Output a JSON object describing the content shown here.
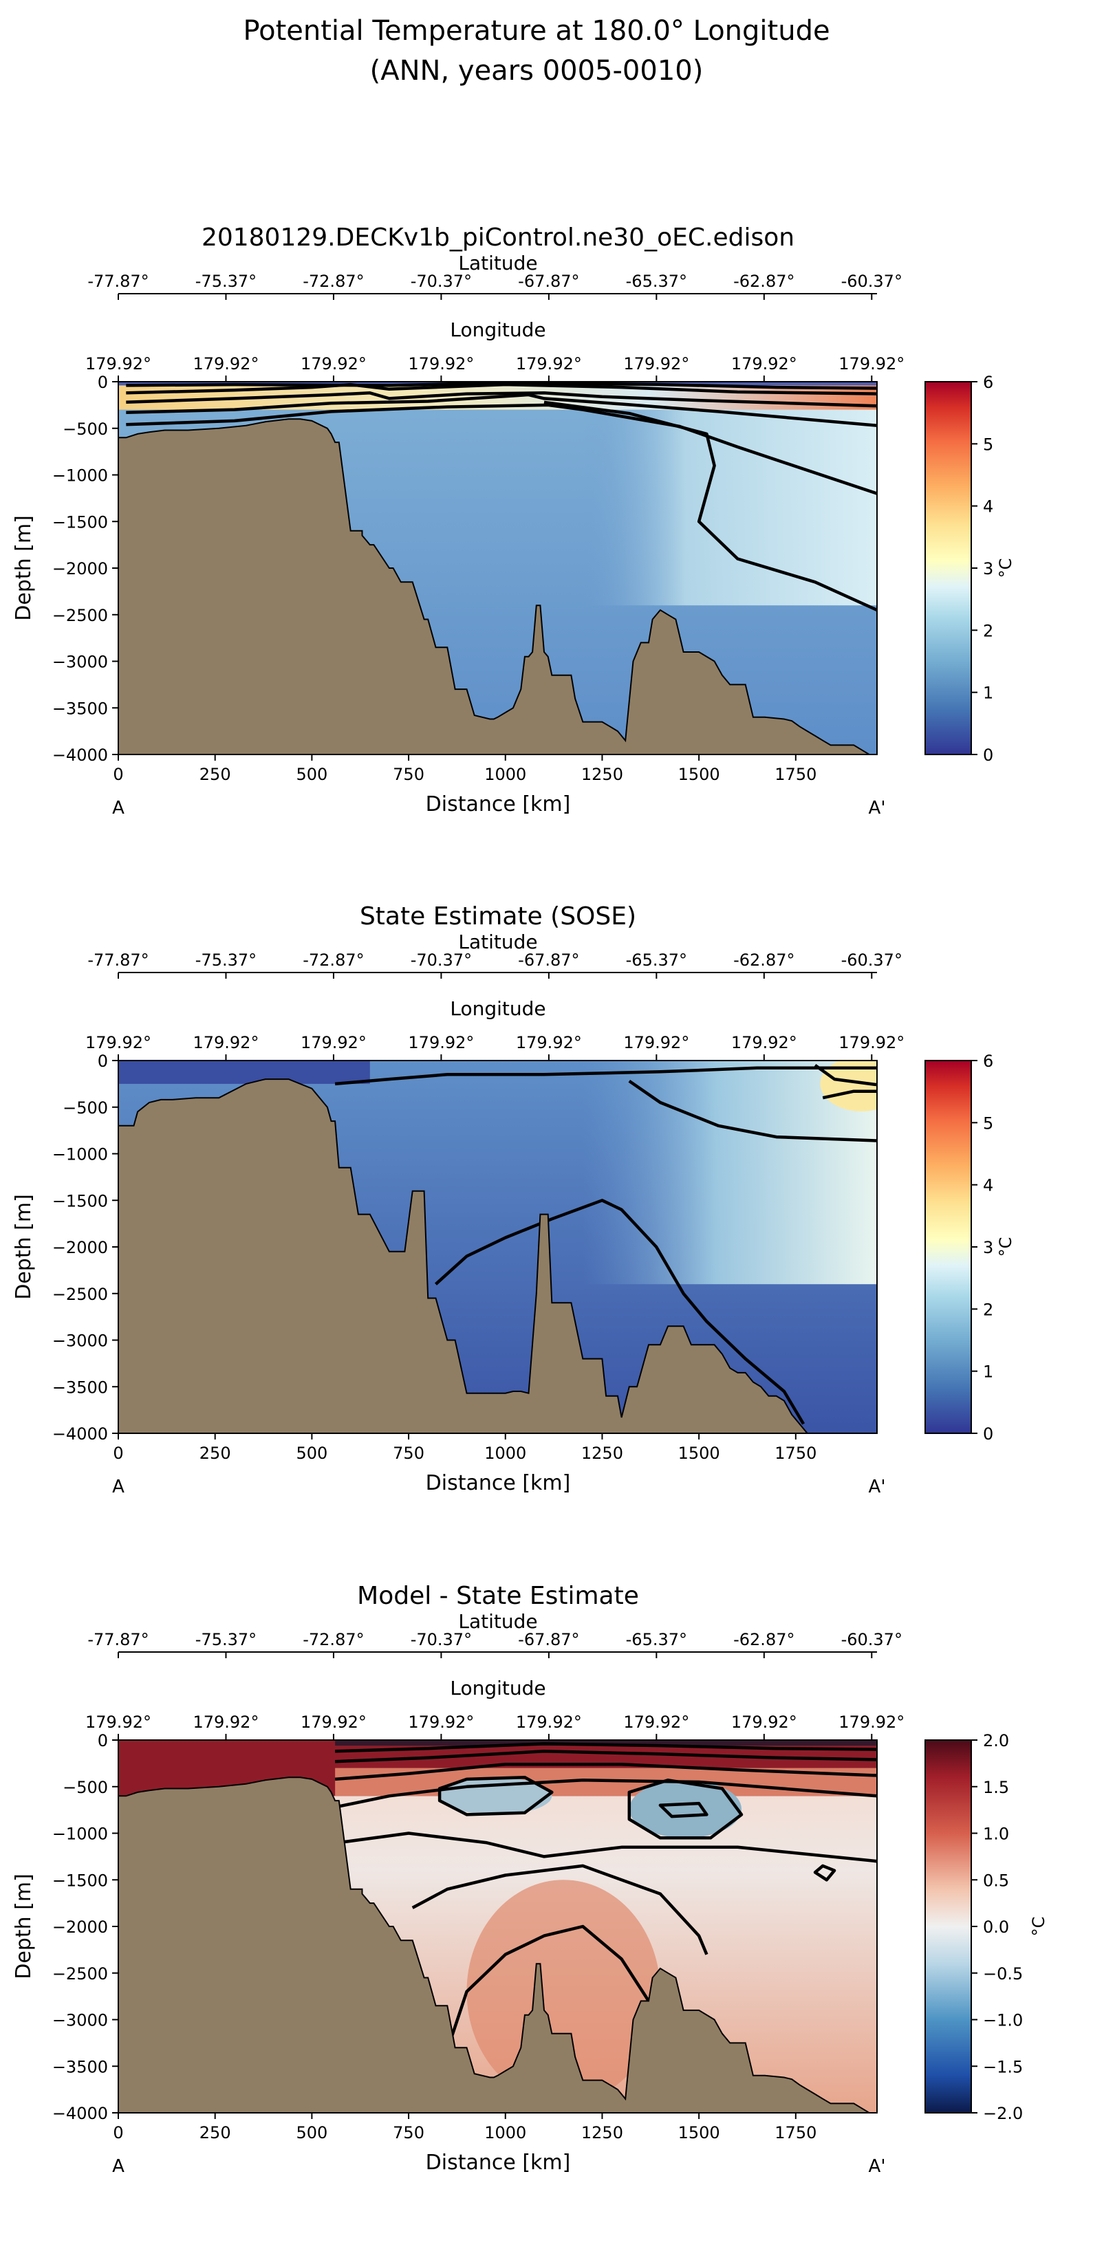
{
  "figure": {
    "title_line1": "Potential Temperature at 180.0° Longitude",
    "title_line2": "(ANN, years 0005-0010)"
  },
  "colors": {
    "land": "#907e64",
    "contour": "#000000"
  },
  "chart_data": [
    {
      "type": "heatmap",
      "title": "20180129.DECKv1b_piControl.ne30_oEC.edison",
      "xlabel": "Distance [km]",
      "ylabel": "Depth [m]",
      "xlim": [
        0,
        1960
      ],
      "ylim": [
        -4000,
        0
      ],
      "xticks": [
        0,
        250,
        500,
        750,
        1000,
        1250,
        1500,
        1750
      ],
      "yticks": [
        0,
        -500,
        -1000,
        -1500,
        -2000,
        -2500,
        -3000,
        -3500,
        -4000
      ],
      "section_start": "A",
      "section_end": "A'",
      "top_axis_1": {
        "label": "Latitude",
        "ticks": [
          "-77.87°",
          "-75.37°",
          "-72.87°",
          "-70.37°",
          "-67.87°",
          "-65.37°",
          "-62.87°",
          "-60.37°"
        ]
      },
      "top_axis_2": {
        "label": "Longitude",
        "ticks": [
          "179.92°",
          "179.92°",
          "179.92°",
          "179.92°",
          "179.92°",
          "179.92°",
          "179.92°",
          "179.92°"
        ]
      },
      "colorbar": {
        "label": "°C",
        "range": [
          0,
          6
        ],
        "ticks": [
          "0",
          "1",
          "2",
          "3",
          "4",
          "5",
          "6"
        ],
        "cmap": "RdYlBu_r"
      },
      "contour_levels": [
        0.5,
        1.5,
        2.5,
        3.5,
        4.5
      ],
      "bathymetry": {
        "distance": [
          0,
          20,
          50,
          80,
          120,
          180,
          260,
          330,
          380,
          440,
          470,
          500,
          540,
          550,
          560,
          570,
          600,
          630,
          630,
          640,
          650,
          660,
          700,
          710,
          730,
          760,
          790,
          800,
          820,
          850,
          870,
          900,
          920,
          960,
          970,
          980,
          1000,
          1020,
          1040,
          1050,
          1060,
          1070,
          1080,
          1090,
          1100,
          1110,
          1120,
          1170,
          1180,
          1200,
          1250,
          1270,
          1290,
          1310,
          1330,
          1350,
          1370,
          1380,
          1400,
          1420,
          1440,
          1460,
          1480,
          1500,
          1540,
          1560,
          1580,
          1600,
          1620,
          1640,
          1660,
          1670,
          1720,
          1740,
          1760,
          1780,
          1800,
          1820,
          1840,
          1860,
          1880,
          1900,
          1920,
          1940,
          1960
        ],
        "depth": [
          -600,
          -600,
          -560,
          -540,
          -520,
          -520,
          -500,
          -470,
          -430,
          -400,
          -400,
          -420,
          -500,
          -560,
          -650,
          -650,
          -1600,
          -1600,
          -1650,
          -1700,
          -1750,
          -1750,
          -2000,
          -2000,
          -2150,
          -2150,
          -2550,
          -2550,
          -2850,
          -2850,
          -3300,
          -3300,
          -3580,
          -3620,
          -3620,
          -3600,
          -3550,
          -3500,
          -3300,
          -2950,
          -2950,
          -2900,
          -2400,
          -2400,
          -2900,
          -2950,
          -3150,
          -3150,
          -3400,
          -3650,
          -3650,
          -3700,
          -3750,
          -3850,
          -3000,
          -2800,
          -2800,
          -2550,
          -2450,
          -2500,
          -2550,
          -2900,
          -2900,
          -2900,
          -3000,
          -3150,
          -3250,
          -3250,
          -3250,
          -3600,
          -3600,
          -3600,
          -3620,
          -3640,
          -3700,
          -3750,
          -3800,
          -3850,
          -3900,
          -3900,
          -3900,
          -3900,
          -3950,
          -4000,
          -4000
        ]
      }
    },
    {
      "type": "heatmap",
      "title": "State Estimate (SOSE)",
      "xlabel": "Distance [km]",
      "ylabel": "Depth [m]",
      "xlim": [
        0,
        1960
      ],
      "ylim": [
        -4000,
        0
      ],
      "xticks": [
        0,
        250,
        500,
        750,
        1000,
        1250,
        1500,
        1750
      ],
      "yticks": [
        0,
        -500,
        -1000,
        -1500,
        -2000,
        -2500,
        -3000,
        -3500,
        -4000
      ],
      "section_start": "A",
      "section_end": "A'",
      "top_axis_1": {
        "label": "Latitude",
        "ticks": [
          "-77.87°",
          "-75.37°",
          "-72.87°",
          "-70.37°",
          "-67.87°",
          "-65.37°",
          "-62.87°",
          "-60.37°"
        ]
      },
      "top_axis_2": {
        "label": "Longitude",
        "ticks": [
          "179.92°",
          "179.92°",
          "179.92°",
          "179.92°",
          "179.92°",
          "179.92°",
          "179.92°",
          "179.92°"
        ]
      },
      "colorbar": {
        "label": "°C",
        "range": [
          0,
          6
        ],
        "ticks": [
          "0",
          "1",
          "2",
          "3",
          "4",
          "5",
          "6"
        ],
        "cmap": "RdYlBu_r"
      },
      "contour_levels": [
        0.5,
        1.5,
        2.5
      ],
      "bathymetry": {
        "distance": [
          0,
          40,
          50,
          80,
          110,
          140,
          200,
          260,
          330,
          380,
          440,
          470,
          500,
          540,
          550,
          560,
          570,
          600,
          620,
          650,
          700,
          740,
          760,
          790,
          800,
          820,
          850,
          870,
          900,
          920,
          960,
          980,
          1000,
          1020,
          1040,
          1060,
          1080,
          1090,
          1110,
          1120,
          1170,
          1200,
          1250,
          1260,
          1290,
          1300,
          1320,
          1340,
          1370,
          1400,
          1420,
          1440,
          1460,
          1480,
          1500,
          1540,
          1560,
          1580,
          1600,
          1620,
          1640,
          1660,
          1680,
          1700,
          1720,
          1740,
          1760,
          1780,
          1960
        ],
        "depth": [
          -700,
          -700,
          -550,
          -450,
          -420,
          -420,
          -400,
          -400,
          -250,
          -200,
          -200,
          -250,
          -300,
          -500,
          -650,
          -650,
          -1150,
          -1150,
          -1650,
          -1650,
          -2050,
          -2050,
          -1400,
          -1400,
          -2550,
          -2550,
          -3000,
          -3000,
          -3570,
          -3570,
          -3570,
          -3570,
          -3570,
          -3550,
          -3550,
          -3570,
          -2500,
          -1650,
          -1650,
          -2600,
          -2600,
          -3200,
          -3200,
          -3600,
          -3600,
          -3830,
          -3500,
          -3500,
          -3050,
          -3050,
          -2850,
          -2850,
          -2850,
          -3050,
          -3050,
          -3050,
          -3150,
          -3300,
          -3350,
          -3350,
          -3450,
          -3500,
          -3600,
          -3600,
          -3650,
          -3800,
          -3900,
          -4000,
          -4000
        ]
      }
    },
    {
      "type": "heatmap",
      "title": "Model - State Estimate",
      "xlabel": "Distance [km]",
      "ylabel": "Depth [m]",
      "xlim": [
        0,
        1960
      ],
      "ylim": [
        -4000,
        0
      ],
      "xticks": [
        0,
        250,
        500,
        750,
        1000,
        1250,
        1500,
        1750
      ],
      "yticks": [
        0,
        -500,
        -1000,
        -1500,
        -2000,
        -2500,
        -3000,
        -3500,
        -4000
      ],
      "section_start": "A",
      "section_end": "A'",
      "top_axis_1": {
        "label": "Latitude",
        "ticks": [
          "-77.87°",
          "-75.37°",
          "-72.87°",
          "-70.37°",
          "-67.87°",
          "-65.37°",
          "-62.87°",
          "-60.37°"
        ]
      },
      "top_axis_2": {
        "label": "Longitude",
        "ticks": [
          "179.92°",
          "179.92°",
          "179.92°",
          "179.92°",
          "179.92°",
          "179.92°",
          "179.92°",
          "179.92°"
        ]
      },
      "colorbar": {
        "label": "°C",
        "range": [
          -2,
          2
        ],
        "ticks": [
          "−2.0",
          "−1.5",
          "−1.0",
          "−0.5",
          "0.0",
          "0.5",
          "1.0",
          "1.5",
          "2.0"
        ],
        "cmap": "RdBu_r"
      },
      "contour_levels": [
        -0.5,
        0.25,
        0.5,
        0.75,
        1.0,
        1.5
      ],
      "bathymetry": {
        "distance": [
          0,
          20,
          50,
          80,
          120,
          180,
          260,
          330,
          380,
          440,
          470,
          500,
          540,
          550,
          560,
          570,
          600,
          630,
          630,
          640,
          650,
          660,
          700,
          710,
          730,
          760,
          790,
          800,
          820,
          850,
          870,
          900,
          920,
          960,
          970,
          980,
          1000,
          1020,
          1040,
          1050,
          1060,
          1070,
          1080,
          1090,
          1100,
          1110,
          1120,
          1170,
          1180,
          1200,
          1250,
          1270,
          1290,
          1310,
          1330,
          1350,
          1370,
          1380,
          1400,
          1420,
          1440,
          1460,
          1480,
          1500,
          1540,
          1560,
          1580,
          1600,
          1620,
          1640,
          1660,
          1670,
          1720,
          1740,
          1760,
          1780,
          1800,
          1820,
          1840,
          1860,
          1880,
          1900,
          1920,
          1940,
          1960
        ],
        "depth": [
          -600,
          -600,
          -560,
          -540,
          -520,
          -520,
          -500,
          -470,
          -430,
          -400,
          -400,
          -420,
          -500,
          -560,
          -650,
          -650,
          -1600,
          -1600,
          -1650,
          -1700,
          -1750,
          -1750,
          -2000,
          -2000,
          -2150,
          -2150,
          -2550,
          -2550,
          -2850,
          -2850,
          -3300,
          -3300,
          -3580,
          -3620,
          -3620,
          -3600,
          -3550,
          -3500,
          -3300,
          -2950,
          -2950,
          -2900,
          -2400,
          -2400,
          -2900,
          -2950,
          -3150,
          -3150,
          -3400,
          -3650,
          -3650,
          -3700,
          -3750,
          -3850,
          -3000,
          -2800,
          -2800,
          -2550,
          -2450,
          -2500,
          -2550,
          -2900,
          -2900,
          -2900,
          -3000,
          -3150,
          -3250,
          -3250,
          -3250,
          -3600,
          -3600,
          -3600,
          -3620,
          -3640,
          -3700,
          -3750,
          -3800,
          -3850,
          -3900,
          -3900,
          -3900,
          -3900,
          -3950,
          -4000,
          -4000
        ]
      }
    }
  ]
}
